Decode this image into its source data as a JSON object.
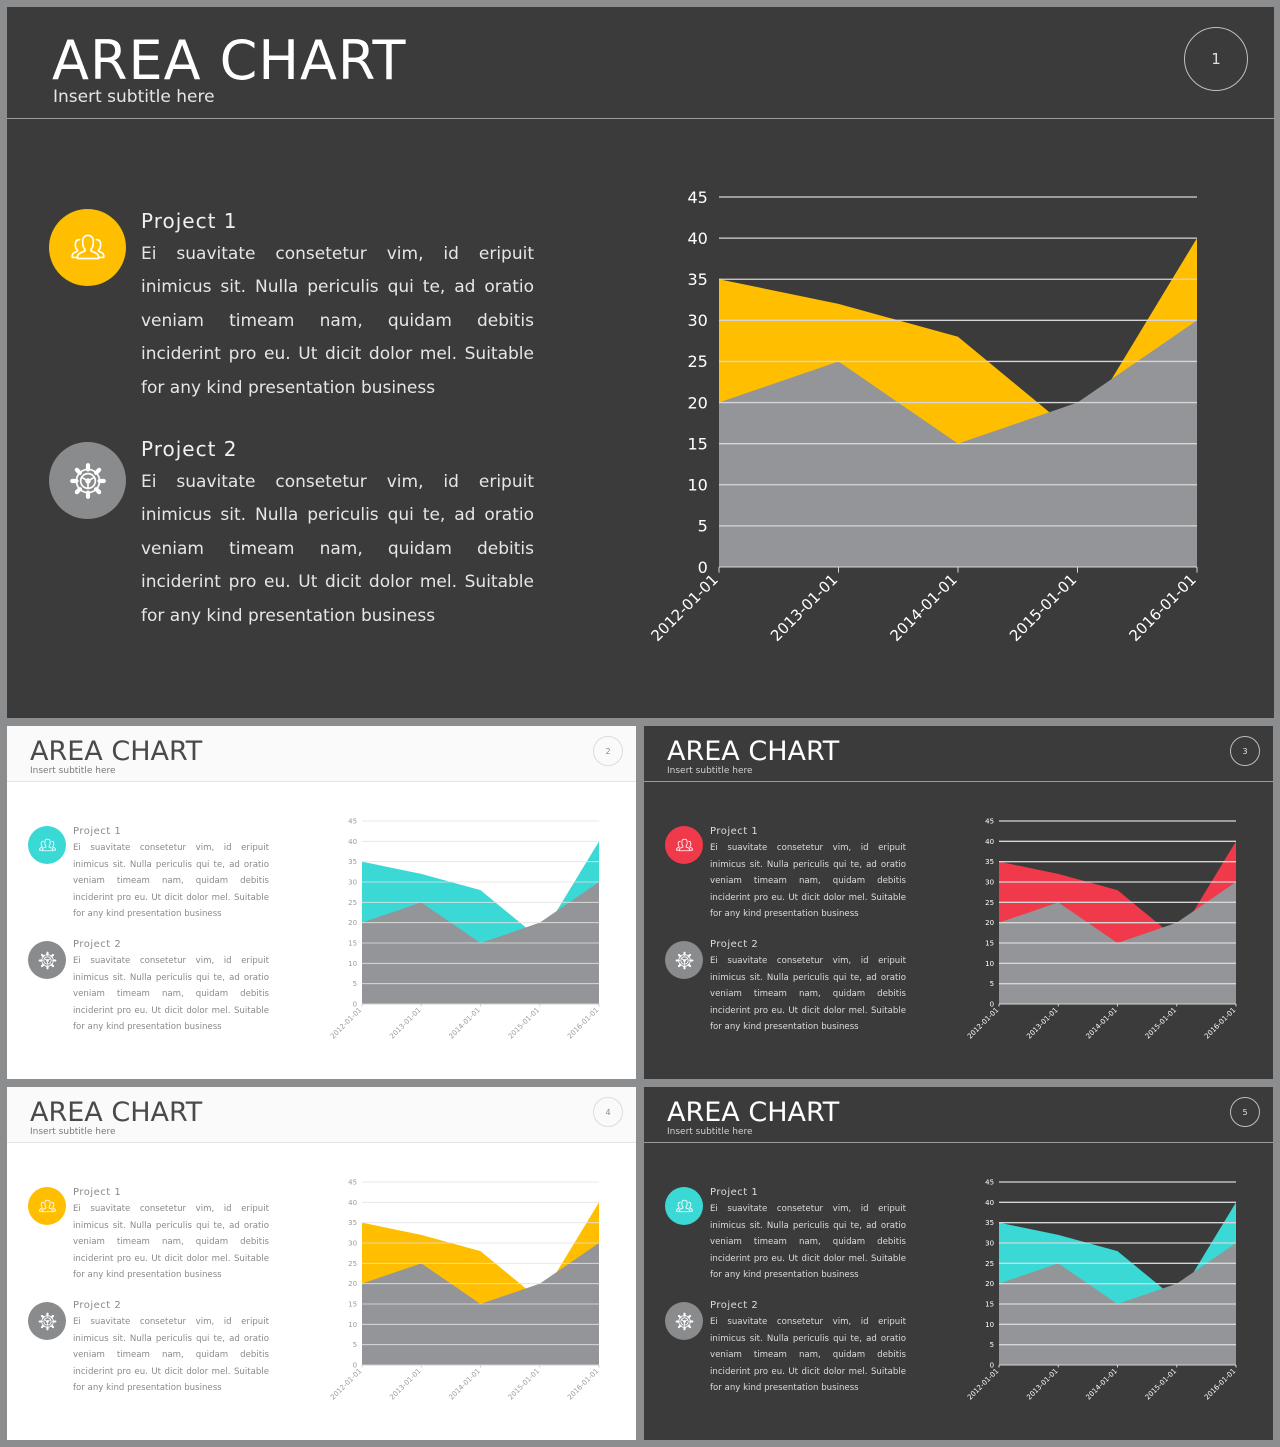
{
  "colors": {
    "yellow": "#FFBE00",
    "cyan": "#3BD9D6",
    "red": "#F0394A",
    "gray_area": "#939598",
    "icon_gray": "#8a8b8c"
  },
  "chart_data": [
    {
      "type": "area",
      "x": [
        "2012-01-01",
        "2013-01-01",
        "2014-01-01",
        "2015-01-01",
        "2016-01-01"
      ],
      "series": [
        {
          "values": [
            35,
            32,
            28,
            16,
            40
          ]
        },
        {
          "values": [
            20,
            25,
            15,
            20,
            30
          ]
        }
      ],
      "yticks": [
        "0",
        "5",
        "10",
        "15",
        "20",
        "25",
        "30",
        "35",
        "40",
        "45"
      ],
      "ylim": [
        0,
        45
      ],
      "grid": true,
      "accent": "yellow"
    },
    {
      "type": "area",
      "x": [
        "2012-01-01",
        "2013-01-01",
        "2014-01-01",
        "2015-01-01",
        "2016-01-01"
      ],
      "series": [
        {
          "values": [
            35,
            32,
            28,
            16,
            40
          ]
        },
        {
          "values": [
            20,
            25,
            15,
            20,
            30
          ]
        }
      ],
      "yticks": [
        "0",
        "5",
        "10",
        "15",
        "20",
        "25",
        "30",
        "35",
        "40",
        "45"
      ],
      "ylim": [
        0,
        45
      ],
      "grid": true,
      "accent": "cyan"
    },
    {
      "type": "area",
      "x": [
        "2012-01-01",
        "2013-01-01",
        "2014-01-01",
        "2015-01-01",
        "2016-01-01"
      ],
      "series": [
        {
          "values": [
            35,
            32,
            28,
            16,
            40
          ]
        },
        {
          "values": [
            20,
            25,
            15,
            20,
            30
          ]
        }
      ],
      "yticks": [
        "0",
        "5",
        "10",
        "15",
        "20",
        "25",
        "30",
        "35",
        "40",
        "45"
      ],
      "ylim": [
        0,
        45
      ],
      "grid": true,
      "accent": "red"
    },
    {
      "type": "area",
      "x": [
        "2012-01-01",
        "2013-01-01",
        "2014-01-01",
        "2015-01-01",
        "2016-01-01"
      ],
      "series": [
        {
          "values": [
            35,
            32,
            28,
            16,
            40
          ]
        },
        {
          "values": [
            20,
            25,
            15,
            20,
            30
          ]
        }
      ],
      "yticks": [
        "0",
        "5",
        "10",
        "15",
        "20",
        "25",
        "30",
        "35",
        "40",
        "45"
      ],
      "ylim": [
        0,
        45
      ],
      "grid": true,
      "accent": "yellow"
    },
    {
      "type": "area",
      "x": [
        "2012-01-01",
        "2013-01-01",
        "2014-01-01",
        "2015-01-01",
        "2016-01-01"
      ],
      "series": [
        {
          "values": [
            35,
            32,
            28,
            16,
            40
          ]
        },
        {
          "values": [
            20,
            25,
            15,
            20,
            30
          ]
        }
      ],
      "yticks": [
        "0",
        "5",
        "10",
        "15",
        "20",
        "25",
        "30",
        "35",
        "40",
        "45"
      ],
      "ylim": [
        0,
        45
      ],
      "grid": true,
      "accent": "cyan"
    }
  ],
  "slides": [
    {
      "title": "AREA CHART",
      "subtitle": "Insert subtitle  here",
      "number": "1",
      "theme": "dark",
      "projects": [
        {
          "title": "Project  1",
          "icon": "users-icon",
          "icon_color": "yellow",
          "text": "Ei  suavitate  consetetur  vim,  id  eripuit inimicus sit. Nulla periculis qui te, ad oratio veniam  timeam  nam,  quidam  debitis inciderint pro eu. Ut dicit dolor mel. Suitable for any kind  presentation  business"
        },
        {
          "title": "Project  2",
          "icon": "gear-icon",
          "icon_color": "icon_gray",
          "text": "Ei  suavitate  consetetur  vim,  id  eripuit inimicus sit. Nulla periculis qui te, ad oratio veniam  timeam  nam,  quidam  debitis inciderint pro eu. Ut dicit dolor mel. Suitable for any kind  presentation  business"
        }
      ]
    },
    {
      "title": "AREA CHART",
      "subtitle": "Insert  subtitle  here",
      "number": "2",
      "theme": "light",
      "projects": [
        {
          "title": "Project  1",
          "icon": "users-icon",
          "icon_color": "cyan",
          "text": "Ei  suavitate  consetetur  vim,  id  eripuit inimicus sit. Nulla periculis qui te, ad oratio veniam  timeam  nam,  quidam  debitis inciderint pro eu. Ut dicit dolor mel. Suitable for any kind  presentation  business"
        },
        {
          "title": "Project  2",
          "icon": "gear-icon",
          "icon_color": "icon_gray",
          "text": "Ei  suavitate  consetetur  vim,  id  eripuit inimicus sit. Nulla periculis qui te, ad oratio veniam  timeam  nam,  quidam  debitis inciderint pro eu. Ut dicit dolor mel. Suitable for any kind  presentation  business"
        }
      ]
    },
    {
      "title": "AREA CHART",
      "subtitle": "Insert  subtitle  here",
      "number": "3",
      "theme": "dark",
      "projects": [
        {
          "title": "Project  1",
          "icon": "users-icon",
          "icon_color": "red",
          "text": "Ei  suavitate  consetetur  vim,  id  eripuit inimicus sit. Nulla periculis qui te, ad oratio veniam  timeam  nam,  quidam  debitis inciderint pro eu. Ut dicit dolor mel. Suitable for any kind  presentation  business"
        },
        {
          "title": "Project  2",
          "icon": "gear-icon",
          "icon_color": "icon_gray",
          "text": "Ei  suavitate  consetetur  vim,  id  eripuit inimicus sit. Nulla periculis qui te, ad oratio veniam  timeam  nam,  quidam  debitis inciderint pro eu. Ut dicit dolor mel. Suitable for any kind  presentation  business"
        }
      ]
    },
    {
      "title": "AREA CHART",
      "subtitle": "Insert  subtitle  here",
      "number": "4",
      "theme": "light",
      "projects": [
        {
          "title": "Project  1",
          "icon": "users-icon",
          "icon_color": "yellow",
          "text": "Ei  suavitate  consetetur  vim,  id  eripuit inimicus sit. Nulla periculis qui te, ad oratio veniam  timeam  nam,  quidam  debitis inciderint pro eu. Ut dicit dolor mel. Suitable for any kind  presentation  business"
        },
        {
          "title": "Project  2",
          "icon": "gear-icon",
          "icon_color": "icon_gray",
          "text": "Ei  suavitate  consetetur  vim,  id  eripuit inimicus sit. Nulla periculis qui te, ad oratio veniam  timeam  nam,  quidam  debitis inciderint pro eu. Ut dicit dolor mel. Suitable for any kind  presentation  business"
        }
      ]
    },
    {
      "title": "AREA CHART",
      "subtitle": "Insert  subtitle  here",
      "number": "5",
      "theme": "dark",
      "projects": [
        {
          "title": "Project  1",
          "icon": "users-icon",
          "icon_color": "cyan",
          "text": "Ei  suavitate  consetetur  vim,  id  eripuit inimicus sit. Nulla periculis qui te, ad oratio veniam  timeam  nam,  quidam  debitis inciderint pro eu. Ut dicit dolor mel. Suitable for any kind  presentation  business"
        },
        {
          "title": "Project  2",
          "icon": "gear-icon",
          "icon_color": "icon_gray",
          "text": "Ei  suavitate  consetetur  vim,  id  eripuit inimicus sit. Nulla periculis qui te, ad oratio veniam  timeam  nam,  quidam  debitis inciderint pro eu. Ut dicit dolor mel. Suitable for any kind  presentation  business"
        }
      ]
    }
  ]
}
